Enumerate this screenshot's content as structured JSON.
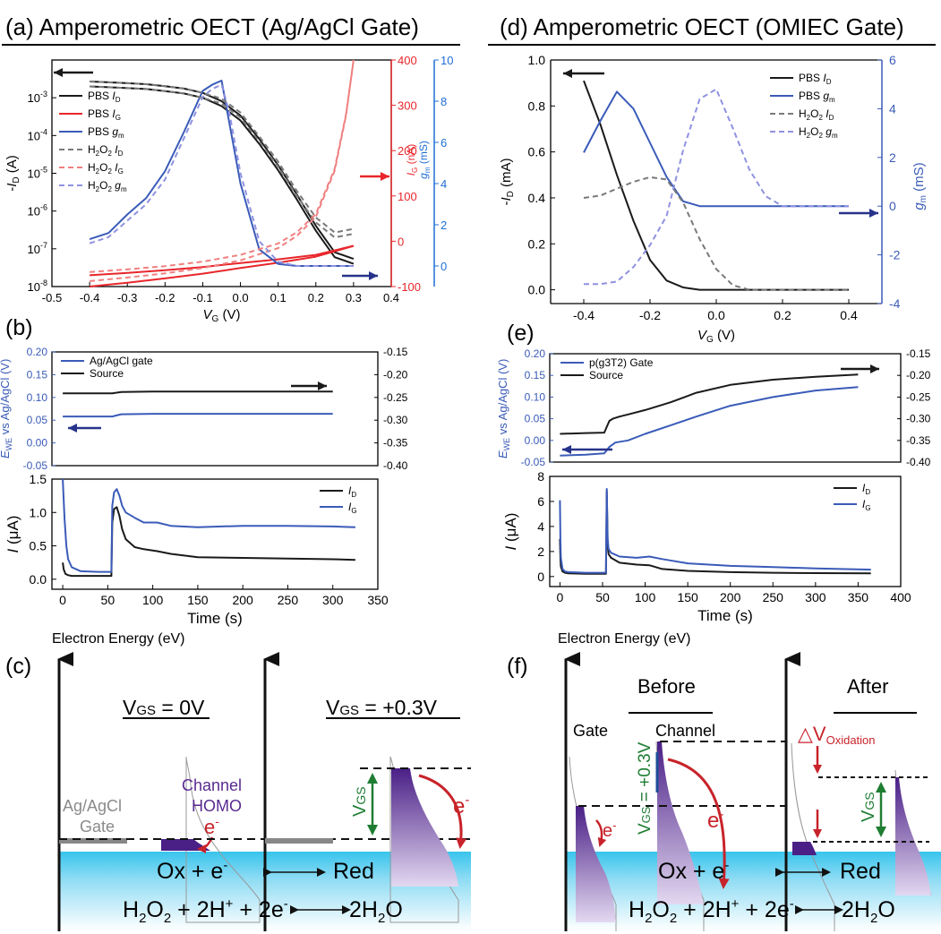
{
  "colors": {
    "black": "#1a1a1a",
    "red": "#e8262b",
    "blue": "#3a5bb8",
    "blue_axis": "#1f6fd6",
    "gray": "#7a7a7a",
    "lred": "#f08080",
    "lblue": "#8f92e0",
    "green": "#1e7d32",
    "purple": "#5a2a91",
    "water": "#38c4ec",
    "navy": "#27338a"
  },
  "panels": {
    "a_title": "(a)  Amperometric OECT (Ag/AgCl Gate)",
    "d_title": "(d)  Amperometric OECT (OMIEC Gate)",
    "b_label": "(b)",
    "e_label": "(e)",
    "c_label": "(c)",
    "f_label": "(f)"
  },
  "chart_data": [
    {
      "id": "a",
      "type": "line",
      "xlabel_main": "V",
      "xlabel_sub": "G",
      "xlabel_unit": " (V)",
      "ylabel": "-I_D (A)",
      "y2label": "I_G (nA)",
      "y3label": "g_m (mS)",
      "xlim": [
        -0.5,
        0.4
      ],
      "ylim_log": [
        1e-08,
        0.01
      ],
      "y2lim": [
        -100,
        400
      ],
      "y3lim": [
        -1,
        10
      ],
      "xticks": [
        "-0.5",
        "-0.4",
        "-0.3",
        "-0.2",
        "-0.1",
        "0.0",
        "0.1",
        "0.2",
        "0.3",
        "0.4"
      ],
      "yticks": [
        "10-8",
        "10-7",
        "10-6",
        "10-5",
        "10-4",
        "10-3"
      ],
      "y2ticks": [
        "-100",
        "0",
        "100",
        "200",
        "300",
        "400"
      ],
      "y3ticks": [
        "0",
        "2",
        "4",
        "6",
        "8",
        "10"
      ],
      "legend": [
        {
          "main": "PBS ",
          "sym": "I",
          "sub": "D",
          "style": "black-solid"
        },
        {
          "main": "PBS ",
          "sym": "I",
          "sub": "G",
          "style": "red-solid"
        },
        {
          "main": "PBS ",
          "sym": "g",
          "sub": "m",
          "style": "blue-solid"
        },
        {
          "main": "H2O2 ",
          "sym": "I",
          "sub": "D",
          "style": "gray-dash"
        },
        {
          "main": "H2O2 ",
          "sym": "I",
          "sub": "G",
          "style": "lred-dash"
        },
        {
          "main": "H2O2 ",
          "sym": "g",
          "sub": "m",
          "style": "lblue-dash"
        }
      ],
      "series": [
        {
          "name": "PBS I_D",
          "axis": "log",
          "x": [
            -0.4,
            -0.35,
            -0.3,
            -0.25,
            -0.2,
            -0.15,
            -0.1,
            -0.05,
            0.0,
            0.05,
            0.1,
            0.15,
            0.2,
            0.25,
            0.3
          ],
          "y": [
            0.002,
            0.0019,
            0.0018,
            0.0017,
            0.0015,
            0.0013,
            0.001,
            0.0006,
            0.00025,
            6e-05,
            1.2e-05,
            2e-06,
            3e-07,
            6e-08,
            4e-08
          ]
        },
        {
          "name": "PBS I_G",
          "axis": "nA",
          "x": [
            -0.4,
            -0.3,
            -0.2,
            -0.1,
            0.0,
            0.1,
            0.2,
            0.3
          ],
          "y": [
            -75,
            -70,
            -64,
            -57,
            -48,
            -40,
            -30,
            -10
          ]
        },
        {
          "name": "PBS g_m",
          "axis": "mS",
          "x": [
            -0.4,
            -0.35,
            -0.3,
            -0.25,
            -0.2,
            -0.15,
            -0.1,
            -0.075,
            -0.05,
            -0.03,
            0.0,
            0.05,
            0.1,
            0.15,
            0.2,
            0.25,
            0.3
          ],
          "y": [
            1.3,
            1.6,
            2.5,
            3.3,
            4.6,
            6.5,
            8.5,
            8.8,
            9.0,
            7.0,
            4.0,
            0.8,
            0.1,
            0.0,
            0.0,
            0.0,
            0.0
          ]
        },
        {
          "name": "H2O2 I_D",
          "axis": "log",
          "x": [
            -0.4,
            -0.35,
            -0.3,
            -0.25,
            -0.2,
            -0.15,
            -0.1,
            -0.05,
            0.0,
            0.05,
            0.1,
            0.15,
            0.2,
            0.25,
            0.3
          ],
          "y": [
            0.002,
            0.0019,
            0.0018,
            0.0017,
            0.0015,
            0.0013,
            0.001,
            0.0007,
            0.0003,
            7e-05,
            1.5e-05,
            2.5e-06,
            5e-07,
            2e-07,
            2.5e-07
          ]
        },
        {
          "name": "H2O2 I_G",
          "axis": "nA",
          "x": [
            -0.4,
            -0.3,
            -0.2,
            -0.1,
            0.0,
            0.1,
            0.15,
            0.2,
            0.25,
            0.28,
            0.3
          ],
          "y": [
            -68,
            -62,
            -55,
            -45,
            -30,
            -5,
            20,
            60,
            160,
            280,
            400
          ]
        },
        {
          "name": "H2O2 g_m",
          "axis": "mS",
          "x": [
            -0.4,
            -0.35,
            -0.3,
            -0.25,
            -0.2,
            -0.15,
            -0.1,
            -0.075,
            -0.05,
            -0.03,
            0.0,
            0.05,
            0.1,
            0.15,
            0.2,
            0.25,
            0.3
          ],
          "y": [
            1.1,
            1.4,
            2.2,
            3.0,
            4.2,
            6.2,
            8.2,
            8.6,
            8.8,
            7.5,
            4.5,
            1.2,
            0.2,
            0.0,
            0.0,
            0.0,
            0.0
          ]
        }
      ]
    },
    {
      "id": "d",
      "type": "line",
      "xlabel_main": "V",
      "xlabel_sub": "G",
      "xlabel_unit": " (V)",
      "ylabel": "-I_D (mA)",
      "y2label": "g_m (mS)",
      "xlim": [
        -0.5,
        0.5
      ],
      "ylim": [
        -0.06,
        1.0
      ],
      "y2lim": [
        -4,
        6
      ],
      "xticks": [
        "-0.4",
        "-0.2",
        "0.0",
        "0.2",
        "0.4"
      ],
      "yticks": [
        "0.0",
        "0.2",
        "0.4",
        "0.6",
        "0.8",
        "1.0"
      ],
      "y2ticks": [
        "-4",
        "-2",
        "0",
        "2",
        "4",
        "6"
      ],
      "legend": [
        {
          "main": "PBS ",
          "sym": "I",
          "sub": "D",
          "style": "black-solid"
        },
        {
          "main": "PBS ",
          "sym": "g",
          "sub": "m",
          "style": "blue-solid"
        },
        {
          "main": "H2O2 ",
          "sym": "I",
          "sub": "D",
          "style": "gray-dash"
        },
        {
          "main": "H2O2 ",
          "sym": "g",
          "sub": "m",
          "style": "lblue-dash"
        }
      ],
      "series": [
        {
          "name": "PBS I_D",
          "axis": "left",
          "x": [
            -0.4,
            -0.35,
            -0.3,
            -0.25,
            -0.2,
            -0.15,
            -0.1,
            -0.05,
            0.0,
            0.1,
            0.2,
            0.3,
            0.4
          ],
          "y": [
            0.91,
            0.72,
            0.5,
            0.3,
            0.13,
            0.04,
            0.01,
            0.0,
            0.0,
            0.0,
            0.0,
            0.0,
            0.0
          ]
        },
        {
          "name": "PBS g_m",
          "axis": "right",
          "x": [
            -0.4,
            -0.35,
            -0.3,
            -0.25,
            -0.2,
            -0.15,
            -0.1,
            -0.05,
            0.0,
            0.1,
            0.2,
            0.3,
            0.4
          ],
          "y": [
            2.2,
            3.5,
            4.7,
            4.0,
            2.6,
            1.2,
            0.2,
            0.0,
            0.0,
            0.0,
            0.0,
            0.0,
            0.0
          ]
        },
        {
          "name": "H2O2 I_D",
          "axis": "left",
          "x": [
            -0.4,
            -0.35,
            -0.3,
            -0.25,
            -0.2,
            -0.15,
            -0.1,
            -0.05,
            0.0,
            0.05,
            0.1,
            0.15,
            0.2,
            0.3,
            0.4
          ],
          "y": [
            0.4,
            0.41,
            0.44,
            0.47,
            0.49,
            0.48,
            0.38,
            0.22,
            0.09,
            0.02,
            0.0,
            0.0,
            0.0,
            0.0,
            0.0
          ]
        },
        {
          "name": "H2O2 g_m",
          "axis": "right",
          "x": [
            -0.4,
            -0.35,
            -0.3,
            -0.25,
            -0.2,
            -0.15,
            -0.1,
            -0.05,
            0.0,
            0.05,
            0.1,
            0.15,
            0.2,
            0.3,
            0.4
          ],
          "y": [
            -3.2,
            -3.2,
            -3.1,
            -2.5,
            -1.6,
            -0.4,
            2.3,
            4.4,
            4.8,
            3.2,
            1.5,
            0.4,
            0.0,
            0.0,
            0.0
          ]
        }
      ]
    },
    {
      "id": "b_top",
      "type": "line",
      "ylabel_main": "E",
      "ylabel_sub": "WE",
      "ylabel_rest": " vs Ag/AgCl (V)",
      "xlim": [
        -12,
        350
      ],
      "ylim": [
        -0.05,
        0.2
      ],
      "y2lim": [
        -0.4,
        -0.15
      ],
      "yticks": [
        "-0.05",
        "0.00",
        "0.05",
        "0.10",
        "0.15",
        "0.20"
      ],
      "y2ticks": [
        "-0.40",
        "-0.35",
        "-0.30",
        "-0.25",
        "-0.20",
        "-0.15"
      ],
      "legend": [
        {
          "text": "Ag/AgCl gate",
          "style": "blue"
        },
        {
          "text": "Source",
          "style": "black"
        }
      ],
      "series": [
        {
          "name": "Ag/AgCl gate",
          "axis": "left",
          "x": [
            0,
            55,
            65,
            100,
            150,
            200,
            250,
            300
          ],
          "y": [
            0.058,
            0.058,
            0.063,
            0.064,
            0.064,
            0.064,
            0.064,
            0.064
          ]
        },
        {
          "name": "Source",
          "axis": "right",
          "x": [
            0,
            55,
            65,
            100,
            150,
            200,
            250,
            300
          ],
          "y": [
            -0.241,
            -0.241,
            -0.238,
            -0.237,
            -0.237,
            -0.237,
            -0.237,
            -0.237
          ]
        }
      ]
    },
    {
      "id": "b_bot",
      "type": "line",
      "ylabel": "I (μA)",
      "xlabel": "Time (s)",
      "xlim": [
        -12,
        350
      ],
      "ylim": [
        -0.15,
        1.5
      ],
      "xticks": [
        "0",
        "50",
        "100",
        "150",
        "200",
        "250",
        "300",
        "350"
      ],
      "yticks": [
        "0.0",
        "0.5",
        "1.0",
        "1.5"
      ],
      "legend": [
        {
          "main": "",
          "sym": "I",
          "sub": "D",
          "style": "black"
        },
        {
          "main": "",
          "sym": "I",
          "sub": "G",
          "style": "blue"
        }
      ],
      "series": [
        {
          "name": "I_D",
          "x": [
            0,
            0.5,
            1,
            3,
            6,
            10,
            20,
            40,
            54,
            55,
            57,
            60,
            63,
            66,
            70,
            80,
            90,
            105,
            120,
            150,
            200,
            250,
            300,
            325
          ],
          "y": [
            0.25,
            0.2,
            0.15,
            0.08,
            0.06,
            0.05,
            0.05,
            0.05,
            0.05,
            0.85,
            1.05,
            1.08,
            0.95,
            0.75,
            0.6,
            0.48,
            0.45,
            0.42,
            0.38,
            0.33,
            0.32,
            0.31,
            0.3,
            0.29
          ]
        },
        {
          "name": "I_G",
          "x": [
            0,
            1,
            2,
            4,
            6,
            10,
            20,
            40,
            54,
            55,
            57,
            60,
            63,
            66,
            70,
            80,
            90,
            105,
            120,
            150,
            200,
            250,
            300,
            325
          ],
          "y": [
            1.5,
            1.2,
            0.9,
            0.5,
            0.3,
            0.18,
            0.12,
            0.11,
            0.11,
            1.1,
            1.3,
            1.35,
            1.25,
            1.1,
            1.0,
            0.92,
            0.85,
            0.85,
            0.8,
            0.78,
            0.8,
            0.8,
            0.79,
            0.78
          ]
        }
      ]
    },
    {
      "id": "e_top",
      "type": "line",
      "ylabel_main": "E",
      "ylabel_sub": "WE",
      "ylabel_rest": " vs Ag/AgCl (V)",
      "xlim": [
        -12,
        400
      ],
      "ylim": [
        -0.05,
        0.2
      ],
      "y2lim": [
        -0.4,
        -0.15
      ],
      "yticks": [
        "-0.05",
        "0.00",
        "0.05",
        "0.10",
        "0.15",
        "0.20"
      ],
      "y2ticks": [
        "-0.40",
        "-0.35",
        "-0.30",
        "-0.25",
        "-0.20",
        "-0.15"
      ],
      "legend": [
        {
          "text": "p(g3T2) Gate",
          "style": "blue"
        },
        {
          "text": "Source",
          "style": "black"
        }
      ],
      "series": [
        {
          "name": "p(g3T2) Gate",
          "axis": "left",
          "x": [
            0,
            30,
            52,
            58,
            65,
            80,
            100,
            130,
            160,
            200,
            250,
            300,
            350
          ],
          "y": [
            -0.035,
            -0.033,
            -0.03,
            -0.015,
            -0.005,
            0.0,
            0.015,
            0.035,
            0.055,
            0.08,
            0.1,
            0.115,
            0.123
          ]
        },
        {
          "name": "Source",
          "axis": "right",
          "x": [
            0,
            30,
            52,
            58,
            62,
            70,
            80,
            100,
            130,
            160,
            200,
            250,
            300,
            350
          ],
          "y": [
            -0.335,
            -0.333,
            -0.332,
            -0.305,
            -0.3,
            -0.295,
            -0.29,
            -0.28,
            -0.262,
            -0.24,
            -0.222,
            -0.21,
            -0.203,
            -0.198
          ]
        }
      ]
    },
    {
      "id": "e_bot",
      "type": "line",
      "ylabel": "I (μA)",
      "xlabel": "Time (s)",
      "xlim": [
        -12,
        400
      ],
      "ylim": [
        -0.8,
        8
      ],
      "xticks": [
        "0",
        "50",
        "100",
        "150",
        "200",
        "250",
        "300",
        "350",
        "400"
      ],
      "yticks": [
        "0",
        "2",
        "4",
        "6",
        "8"
      ],
      "legend": [
        {
          "main": "",
          "sym": "I",
          "sub": "D",
          "style": "black"
        },
        {
          "main": "",
          "sym": "I",
          "sub": "G",
          "style": "blue"
        }
      ],
      "series": [
        {
          "name": "I_D",
          "x": [
            0,
            0.5,
            1,
            3,
            6,
            10,
            30,
            54,
            55,
            56,
            57,
            60,
            70,
            90,
            105,
            120,
            150,
            200,
            250,
            300,
            365
          ],
          "y": [
            3.0,
            1.5,
            0.8,
            0.4,
            0.3,
            0.25,
            0.22,
            0.22,
            6.8,
            2.5,
            1.8,
            1.5,
            1.1,
            0.95,
            0.9,
            0.6,
            0.45,
            0.35,
            0.3,
            0.27,
            0.25
          ]
        },
        {
          "name": "I_G",
          "x": [
            0,
            0.5,
            1,
            3,
            6,
            10,
            30,
            54,
            55,
            56,
            57,
            60,
            70,
            90,
            105,
            120,
            150,
            200,
            250,
            300,
            365
          ],
          "y": [
            6.1,
            3.0,
            1.5,
            0.6,
            0.4,
            0.35,
            0.3,
            0.3,
            7.0,
            3.0,
            2.2,
            1.9,
            1.6,
            1.5,
            1.6,
            1.4,
            1.05,
            0.85,
            0.75,
            0.65,
            0.55
          ]
        }
      ]
    }
  ],
  "diagram_c": {
    "y_axis_label": "Electron Energy (eV)",
    "vgs_left": "V",
    "vgs_left_sub": "GS",
    "vgs_left_val": " = 0V",
    "vgs_right_val": " = +0.3V",
    "gate_label_1": "Ag/AgCl",
    "gate_label_2": "Gate",
    "channel_label_1": "Channel",
    "channel_label_2": "HOMO",
    "electron": "e",
    "electron_sup": "-",
    "vgs_arrow": "V",
    "vgs_arrow_sub": "GS",
    "eq1_left": "Ox + e",
    "eq1_right": "Red",
    "eq2_left": "H2O2 + 2H+ + 2e",
    "eq2_right": "2H2O"
  },
  "diagram_f": {
    "y_axis_label": "Electron Energy (eV)",
    "before": "Before",
    "after": "After",
    "gate": "Gate",
    "channel": "Channel",
    "vgs_eq": "V",
    "vgs_eq_sub": "GS",
    "vgs_eq_val": " = +0.3V",
    "delta_v": "△V",
    "delta_v_sub": "Oxidation",
    "vgs_arrow": "V",
    "vgs_arrow_sub": "GS",
    "electron": "e",
    "electron_sup": "-",
    "eq1_left": "Ox + e",
    "eq1_right": "Red",
    "eq2_left": "H2O2 + 2H+ + 2e",
    "eq2_right": "2H2O"
  }
}
